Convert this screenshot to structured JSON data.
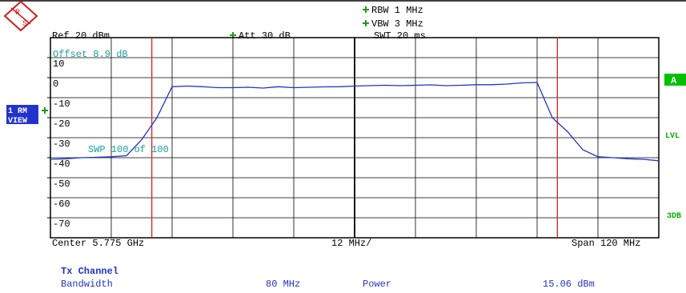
{
  "chart_data": {
    "type": "line",
    "logo_letters": [
      "R",
      "S"
    ],
    "header": {
      "rbw": "RBW 1 MHz",
      "vbw": "VBW 3 MHz",
      "swt": "SWT 20 ms",
      "ref": "Ref  20 dBm",
      "att": "Att  30 dB"
    },
    "annotations": {
      "offset": "Offset  8.9 dB",
      "sweep": "SWP  100 of  100"
    },
    "side_labels": {
      "trace": [
        "1 RM",
        "VIEW"
      ],
      "a": "A",
      "lvl": "LVL",
      "db": "3DB"
    },
    "x_axis_labels": {
      "center": "Center 5.775 GHz",
      "per_div": "12 MHz/",
      "span": "Span 120 MHz"
    },
    "xlim": [
      5.715,
      5.835
    ],
    "ylim": [
      -80,
      20
    ],
    "yticks": [
      10,
      0,
      -10,
      -20,
      -30,
      -40,
      -50,
      -60,
      -70
    ],
    "grid": true,
    "x": [
      5.715,
      5.718,
      5.721,
      5.724,
      5.727,
      5.73,
      5.733,
      5.736,
      5.739,
      5.742,
      5.745,
      5.748,
      5.751,
      5.754,
      5.757,
      5.76,
      5.763,
      5.766,
      5.769,
      5.772,
      5.775,
      5.778,
      5.781,
      5.784,
      5.787,
      5.79,
      5.793,
      5.796,
      5.799,
      5.802,
      5.805,
      5.808,
      5.811,
      5.814,
      5.817,
      5.82,
      5.823,
      5.826,
      5.829,
      5.832,
      5.835
    ],
    "series": [
      {
        "color": "#2233cc",
        "values": [
          -40.8,
          -40.5,
          -40,
          -39.8,
          -39.5,
          -39,
          -31,
          -20,
          -4.5,
          -4.2,
          -4.5,
          -5,
          -5,
          -4.8,
          -5.2,
          -4.5,
          -5,
          -4.8,
          -4.6,
          -4.5,
          -4.2,
          -4,
          -3.8,
          -4,
          -3.8,
          -3.6,
          -4,
          -3.8,
          -3.5,
          -3.5,
          -3.2,
          -2.6,
          -2.4,
          -20,
          -27,
          -36,
          -39.5,
          -40,
          -40.5,
          -40.8,
          -41.5
        ]
      }
    ],
    "channel_markers_x": [
      5.735,
      5.815
    ],
    "marker_color": "#dd2222",
    "result_table": {
      "title": "Tx Channel",
      "rows": [
        [
          "Bandwidth",
          "80 MHz",
          "Power",
          "15.06 dBm"
        ]
      ]
    }
  }
}
